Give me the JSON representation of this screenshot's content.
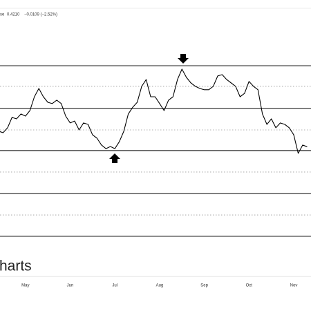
{
  "header": {
    "label": "se",
    "price": "0.4210",
    "change": "−0.0109 (−2.52%)"
  },
  "watermark": "harts",
  "chart_data": {
    "type": "line",
    "color": "#000000",
    "categories": [
      null,
      null,
      null,
      null,
      null,
      null,
      "May",
      null,
      null,
      null,
      null,
      null,
      null,
      null,
      null,
      null,
      "Jun",
      null,
      null,
      null,
      null,
      null,
      null,
      null,
      null,
      null,
      "Jul",
      null,
      null,
      null,
      null,
      null,
      null,
      null,
      null,
      null,
      "Aug",
      null,
      null,
      null,
      null,
      null,
      null,
      null,
      null,
      null,
      "Sep",
      null,
      null,
      null,
      null,
      null,
      null,
      null,
      null,
      null,
      "Oct",
      null,
      null,
      null,
      null,
      null,
      null,
      null,
      null,
      null,
      "Nov",
      null,
      null,
      null
    ],
    "values": [
      0.4283,
      0.4276,
      0.4299,
      0.4348,
      0.4341,
      0.4364,
      0.4354,
      0.438,
      0.4445,
      0.4484,
      0.4445,
      0.4419,
      0.4413,
      0.4429,
      0.4413,
      0.4354,
      0.4322,
      0.4331,
      0.4289,
      0.4322,
      0.4315,
      0.4266,
      0.425,
      0.4218,
      0.4201,
      0.4211,
      0.4201,
      0.4234,
      0.4283,
      0.4364,
      0.4396,
      0.4419,
      0.4494,
      0.4526,
      0.4445,
      0.4445,
      0.4413,
      0.438,
      0.4429,
      0.4445,
      0.4526,
      0.4575,
      0.4536,
      0.451,
      0.4494,
      0.4484,
      0.4478,
      0.4478,
      0.4494,
      0.4543,
      0.4549,
      0.4526,
      0.451,
      0.4494,
      0.4445,
      0.4461,
      0.4517,
      0.4494,
      0.4478,
      0.4364,
      0.4315,
      0.4341,
      0.4299,
      0.4322,
      0.4315,
      0.4299,
      0.4266,
      0.4179,
      0.4218,
      0.421
    ],
    "ylim": [
      0.36,
      0.49
    ],
    "levels": [
      {
        "value": 0.4591,
        "style": "solid"
      },
      {
        "value": 0.4494,
        "style": "dotted"
      },
      {
        "value": 0.439,
        "style": "solid"
      },
      {
        "value": 0.4289,
        "style": "dotted"
      },
      {
        "value": 0.4192,
        "style": "solid"
      },
      {
        "value": 0.4091,
        "style": "dotted"
      },
      {
        "value": 0.399,
        "style": "solid"
      },
      {
        "value": 0.3889,
        "style": "dotted"
      },
      {
        "value": 0.3789,
        "style": "solid"
      }
    ]
  }
}
